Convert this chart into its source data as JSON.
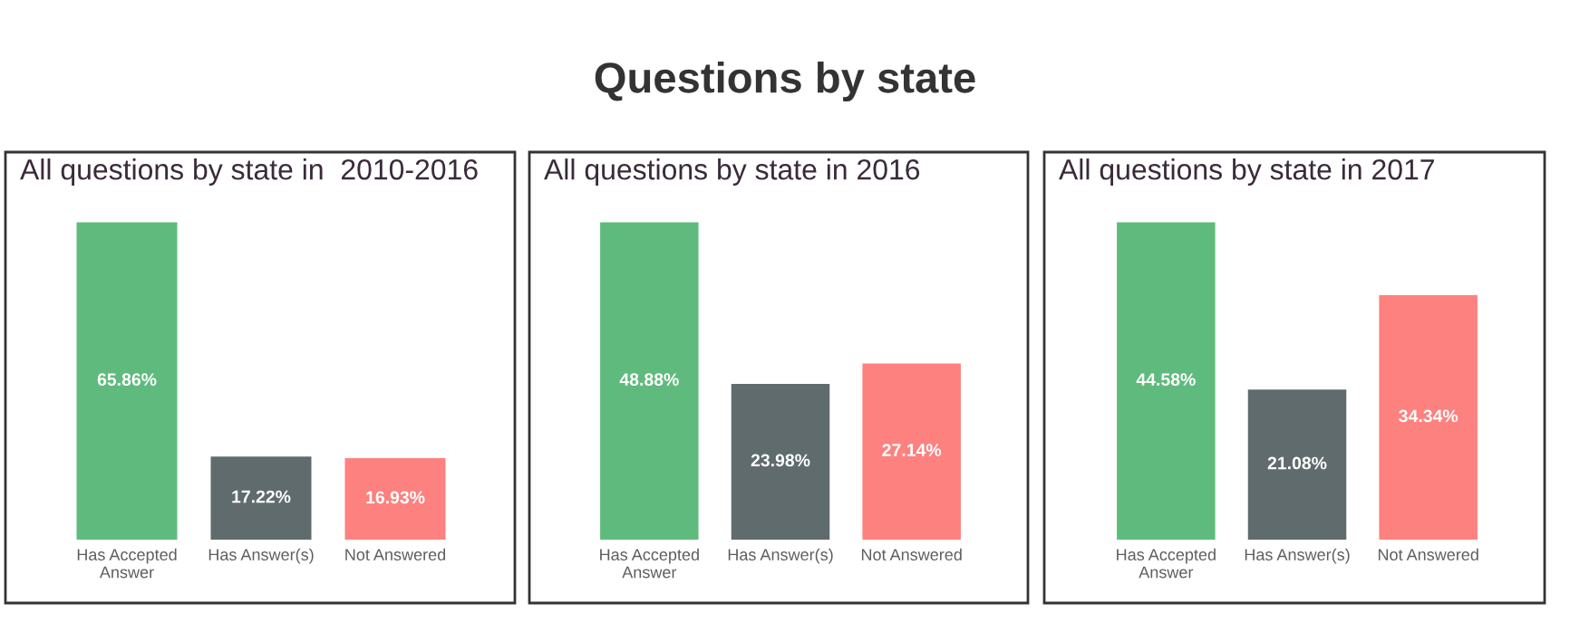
{
  "chart_data": [
    {
      "type": "bar",
      "title": "All questions by state in  2010-2016",
      "annotations": [
        "Questions by state"
      ],
      "categories": [
        "Has Accepted Answer",
        "Has Answer(s)",
        "Not Answered"
      ],
      "values": [
        65.86,
        17.22,
        16.93
      ],
      "colors": [
        "#5fbb7d",
        "#5f6b6d",
        "#fd817e"
      ],
      "value_labels": [
        "65.86%",
        "17.22%",
        "16.93%"
      ],
      "grid": false,
      "legend": false
    },
    {
      "type": "bar",
      "title": "All questions by state in 2016",
      "categories": [
        "Has Accepted Answer",
        "Has Answer(s)",
        "Not Answered"
      ],
      "values": [
        48.88,
        23.98,
        27.14
      ],
      "colors": [
        "#5fbb7d",
        "#5f6b6d",
        "#fd817e"
      ],
      "value_labels": [
        "48.88%",
        "23.98%",
        "27.14%"
      ],
      "grid": false,
      "legend": false
    },
    {
      "type": "bar",
      "title": "All questions by state in 2017",
      "categories": [
        "Has Accepted Answer",
        "Has Answer(s)",
        "Not Answered"
      ],
      "values": [
        44.58,
        21.08,
        34.34
      ],
      "colors": [
        "#5fbb7d",
        "#5f6b6d",
        "#fd817e"
      ],
      "value_labels": [
        "44.58%",
        "21.08%",
        "34.34%"
      ],
      "grid": false,
      "legend": false
    }
  ]
}
